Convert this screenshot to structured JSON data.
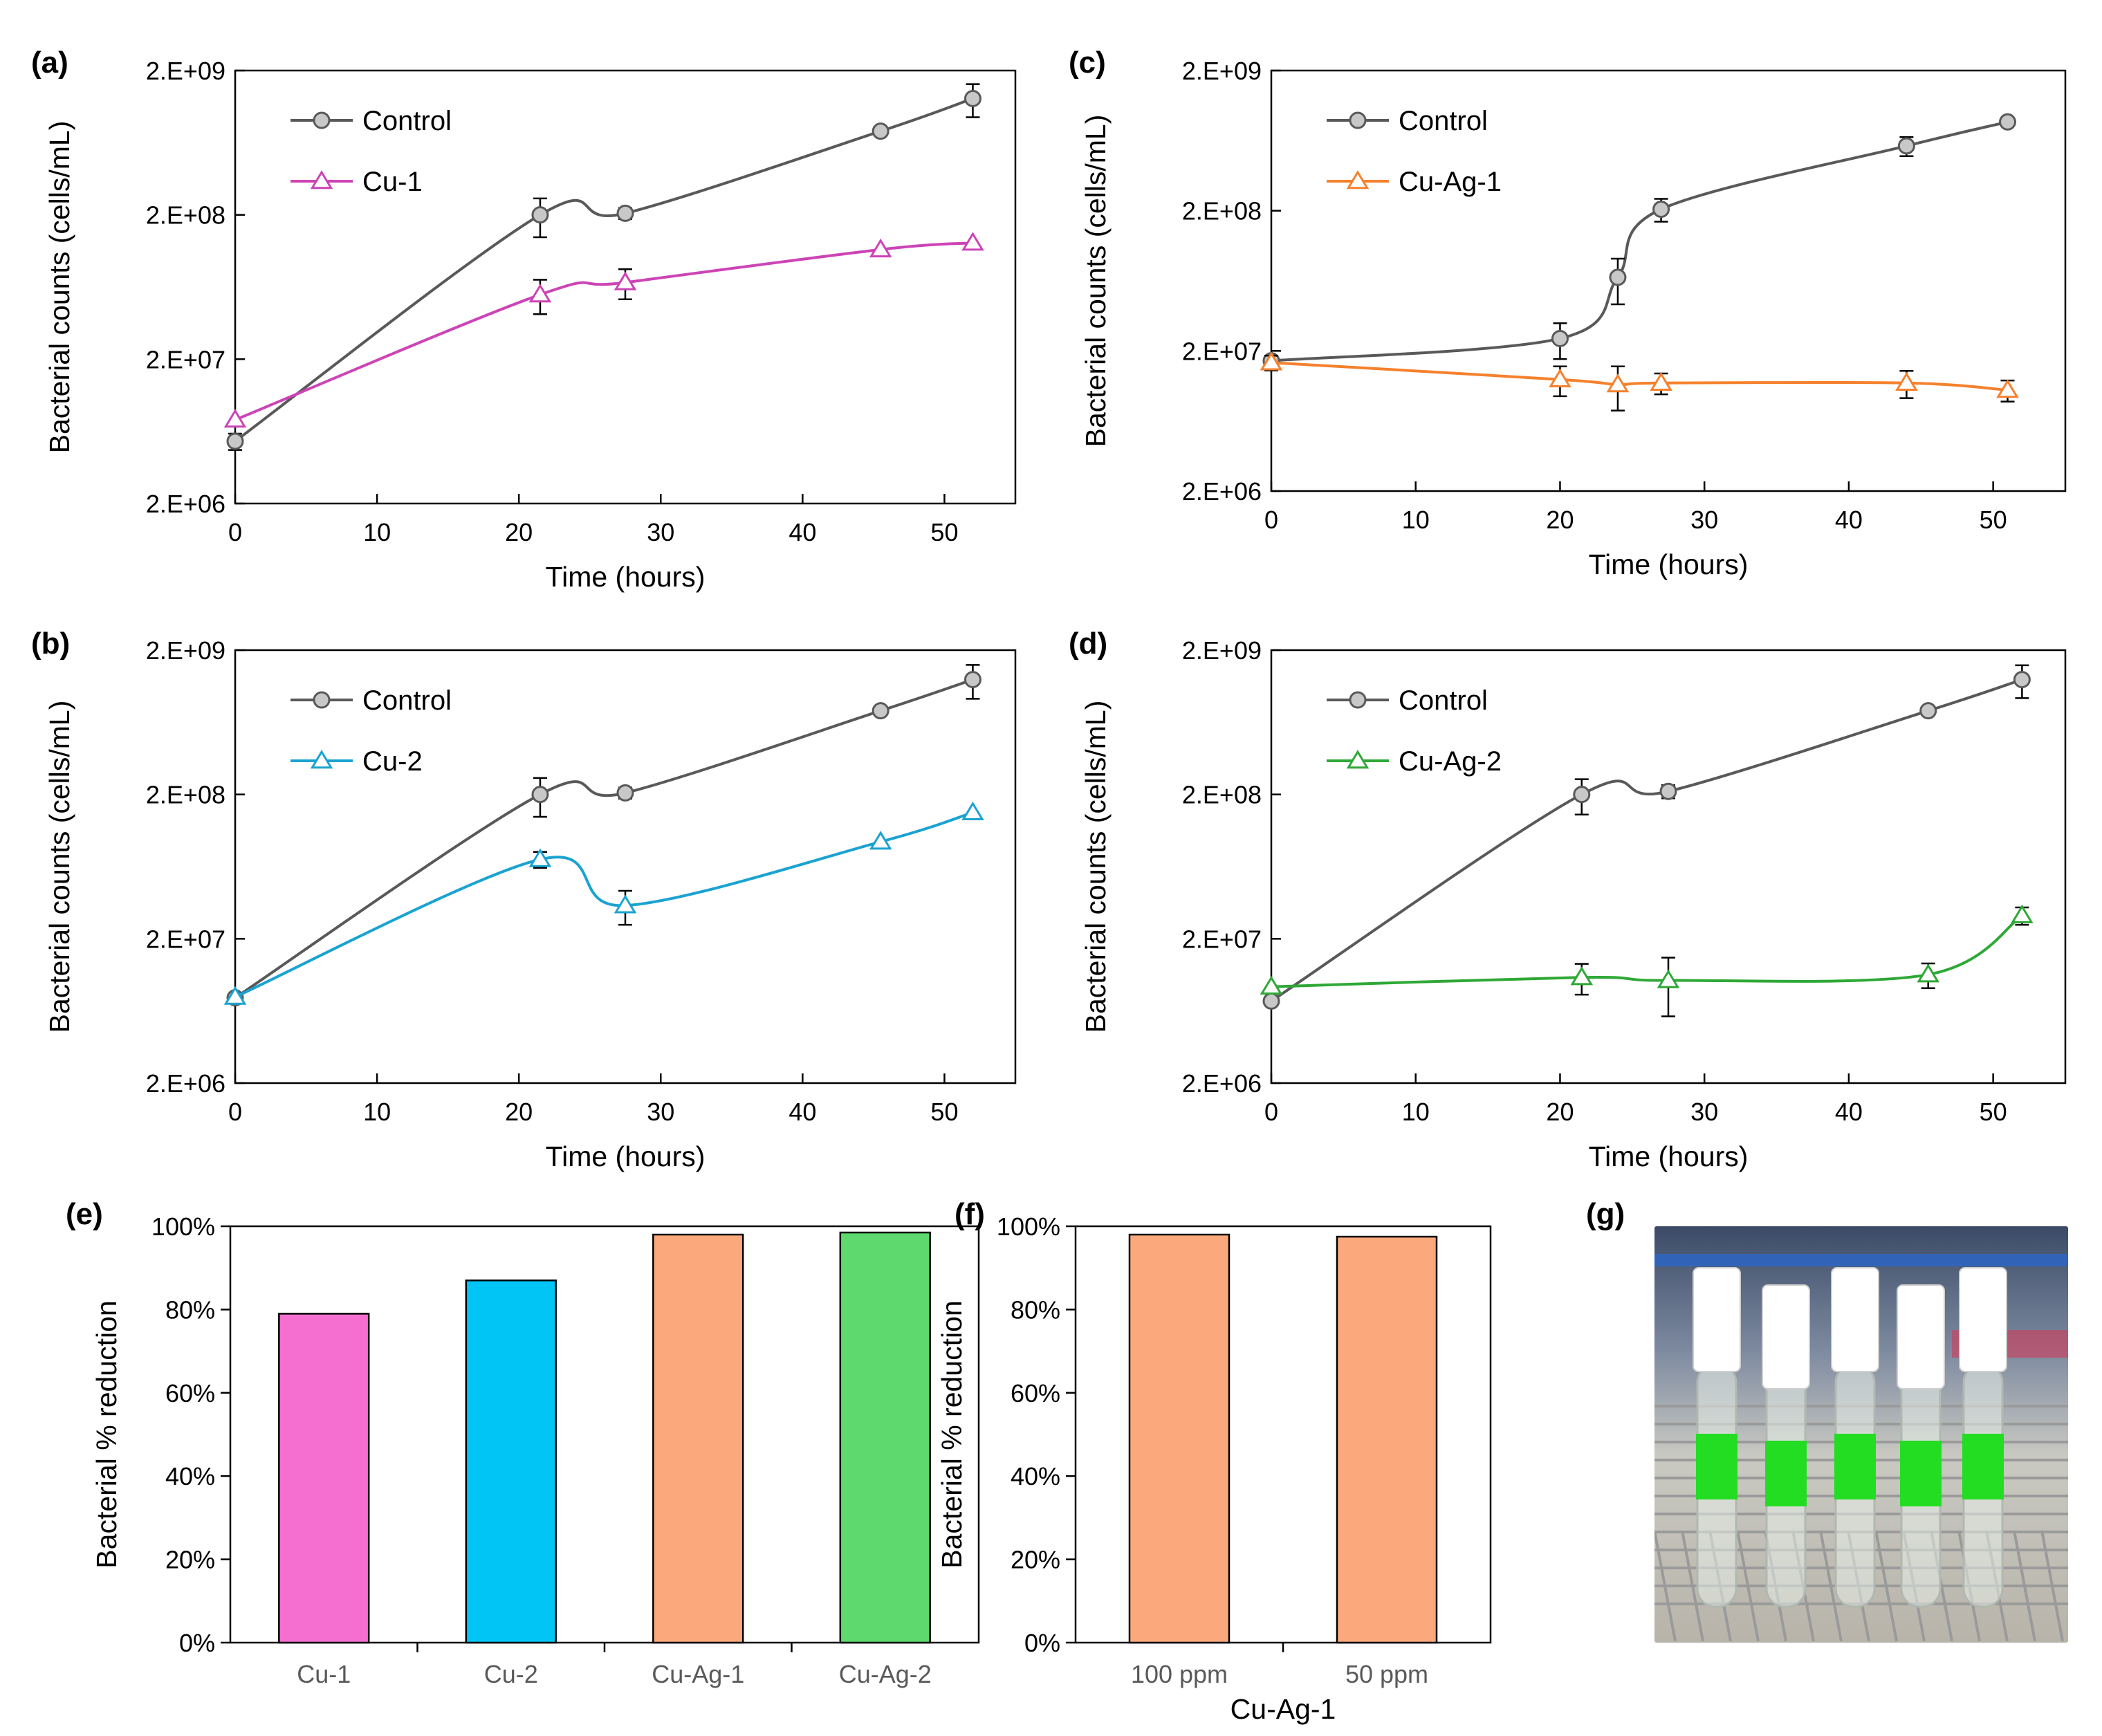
{
  "chart_data": [
    {
      "panel": "(a)",
      "type": "line",
      "scale_y": "log",
      "xlabel": "Time (hours)",
      "ylabel": "Bacterial counts (cells/mL)",
      "xlim": [
        0,
        55
      ],
      "xticks": [
        0,
        10,
        20,
        30,
        40,
        50
      ],
      "ylim": [
        2000000,
        2000000000
      ],
      "yticks": [
        2000000,
        20000000,
        200000000,
        2000000000
      ],
      "ytick_labels": [
        "2.E+06",
        "2.E+07",
        "2.E+08",
        "2.E+09"
      ],
      "legend": "top-left",
      "grid": false,
      "series": [
        {
          "name": "Control",
          "color": "#595959",
          "marker": "circle",
          "x": [
            0,
            21.5,
            27.5,
            45.5,
            52
          ],
          "y": [
            5400000,
            200000000,
            205000000,
            760000000,
            1280000000
          ],
          "err": [
            700000,
            60000000,
            18000000,
            0,
            330000000
          ]
        },
        {
          "name": "Cu-1",
          "color": "#cc44b6",
          "marker": "triangle",
          "x": [
            0,
            21.5,
            27.5,
            45.5,
            52
          ],
          "y": [
            7600000,
            56000000,
            68000000,
            115000000,
            128000000
          ],
          "err": [
            0,
            15000000,
            16000000,
            0,
            0
          ]
        }
      ]
    },
    {
      "panel": "(b)",
      "type": "line",
      "scale_y": "log",
      "xlabel": "Time (hours)",
      "ylabel": "Bacterial counts (cells/mL)",
      "xlim": [
        0,
        55
      ],
      "xticks": [
        0,
        10,
        20,
        30,
        40,
        50
      ],
      "ylim": [
        2000000,
        2000000000
      ],
      "yticks": [
        2000000,
        20000000,
        200000000,
        2000000000
      ],
      "ytick_labels": [
        "2.E+06",
        "2.E+07",
        "2.E+08",
        "2.E+09"
      ],
      "legend": "top-left",
      "grid": false,
      "series": [
        {
          "name": "Control",
          "color": "#595959",
          "marker": "circle",
          "x": [
            0,
            21.5,
            27.5,
            45.5,
            52
          ],
          "y": [
            7800000,
            200000000,
            205000000,
            760000000,
            1250000000
          ],
          "err": [
            0,
            60000000,
            18000000,
            0,
            330000000
          ]
        },
        {
          "name": "Cu-2",
          "color": "#1aa3d1",
          "marker": "triangle",
          "x": [
            0,
            21.5,
            27.5,
            45.5,
            52
          ],
          "y": [
            7900000,
            71000000,
            34000000,
            94000000,
            150000000
          ],
          "err": [
            0,
            9000000,
            9000000,
            0,
            0
          ]
        }
      ]
    },
    {
      "panel": "(c)",
      "type": "line",
      "scale_y": "log",
      "xlabel": "Time (hours)",
      "ylabel": "Bacterial counts (cells/mL)",
      "xlim": [
        0,
        55
      ],
      "xticks": [
        0,
        10,
        20,
        30,
        40,
        50
      ],
      "ylim": [
        2000000,
        2000000000
      ],
      "yticks": [
        2000000,
        20000000,
        200000000,
        2000000000
      ],
      "ytick_labels": [
        "2.E+06",
        "2.E+07",
        "2.E+08",
        "2.E+09"
      ],
      "legend": "top-left",
      "grid": false,
      "series": [
        {
          "name": "Control",
          "color": "#595959",
          "marker": "circle",
          "x": [
            0,
            20,
            24,
            27,
            44,
            51
          ],
          "y": [
            17000000,
            24500000,
            67000000,
            205000000,
            580000000,
            860000000
          ],
          "err": [
            1500000,
            7000000,
            24000000,
            38000000,
            90000000,
            40000000
          ]
        },
        {
          "name": "Cu-Ag-1",
          "color": "#f5812d",
          "marker": "triangle",
          "x": [
            0,
            20,
            24,
            27,
            44,
            51
          ],
          "y": [
            16500000,
            12500000,
            11500000,
            11800000,
            11800000,
            10500000
          ],
          "err": [
            2000000,
            3000000,
            4000000,
            2000000,
            2600000,
            1800000
          ]
        }
      ]
    },
    {
      "panel": "(d)",
      "type": "line",
      "scale_y": "log",
      "xlabel": "Time (hours)",
      "ylabel": "Bacterial counts (cells/mL)",
      "xlim": [
        0,
        55
      ],
      "xticks": [
        0,
        10,
        20,
        30,
        40,
        50
      ],
      "ylim": [
        2000000,
        2000000000
      ],
      "yticks": [
        2000000,
        20000000,
        200000000,
        2000000000
      ],
      "ytick_labels": [
        "2.E+06",
        "2.E+07",
        "2.E+08",
        "2.E+09"
      ],
      "legend": "top-left",
      "grid": false,
      "series": [
        {
          "name": "Control",
          "color": "#595959",
          "marker": "circle",
          "x": [
            0,
            21.5,
            27.5,
            45.5,
            52
          ],
          "y": [
            7400000,
            200000000,
            210000000,
            760000000,
            1250000000
          ],
          "err": [
            0,
            55000000,
            22000000,
            0,
            320000000
          ]
        },
        {
          "name": "Cu-Ag-2",
          "color": "#2ea836",
          "marker": "triangle",
          "x": [
            0,
            21.5,
            27.5,
            45.5,
            52
          ],
          "y": [
            9300000,
            10800000,
            10300000,
            11300000,
            29000000
          ],
          "err": [
            0,
            2600000,
            4500000,
            2200000,
            4000000
          ]
        }
      ]
    },
    {
      "panel": "(e)",
      "type": "bar",
      "ylabel": "Bacterial % reduction",
      "ylim": [
        0,
        100
      ],
      "yticks": [
        0,
        20,
        40,
        60,
        80,
        100
      ],
      "ytick_labels": [
        "0%",
        "20%",
        "40%",
        "60%",
        "80%",
        "100%"
      ],
      "categories": [
        "Cu-1",
        "Cu-2",
        "Cu-Ag-1",
        "Cu-Ag-2"
      ],
      "values": [
        79,
        87,
        98,
        98.5
      ],
      "colors": [
        "#f56fd0",
        "#00c5f5",
        "#fba97c",
        "#5dd96e"
      ]
    },
    {
      "panel": "(f)",
      "type": "bar",
      "xlabel": "Cu-Ag-1",
      "ylabel": "Bacterial % reduction",
      "ylim": [
        0,
        100
      ],
      "yticks": [
        0,
        20,
        40,
        60,
        80,
        100
      ],
      "ytick_labels": [
        "0%",
        "20%",
        "40%",
        "60%",
        "80%",
        "100%"
      ],
      "categories": [
        "100 ppm",
        "50 ppm"
      ],
      "values": [
        98,
        97.5
      ],
      "colors": [
        "#fba97c",
        "#fba97c"
      ]
    }
  ],
  "photo": {
    "panel": "(g)",
    "caps": [
      "#ffffff",
      "#ffffff",
      "#ffffff",
      "#ffffff",
      "#ffffff"
    ],
    "label_color": "#22dd22"
  }
}
